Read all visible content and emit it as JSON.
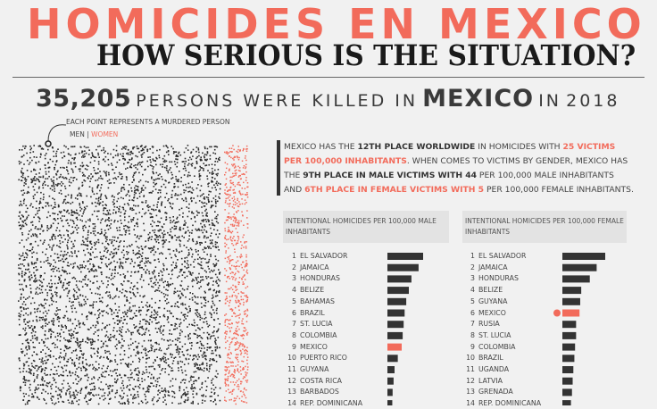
{
  "header": {
    "title": "HOMICIDES EN MEXICO",
    "subtitle": "HOW SERIOUS IS THE SITUATION?",
    "headline_number": "35,205",
    "headline_text1": "PERSONS WERE KILLED IN",
    "headline_country": "MEXICO",
    "headline_in": "IN",
    "headline_year": "2018"
  },
  "legend": {
    "note": "EACH POINT REPRESENTS A MURDERED PERSON",
    "men": "MEN",
    "sep": "|",
    "women": "WOMEN"
  },
  "description": {
    "p1": "MEXICO HAS THE ",
    "p2": "12TH PLACE WORLDWIDE",
    "p3": " IN HOMICIDES WITH ",
    "p4": "25 VICTIMS PER 100,000 INHABITANTS",
    "p5": ". WHEN COMES TO VICTIMS BY GENDER, MEXICO HAS THE ",
    "p6": "9TH PLACE IN MALE VICTIMS WITH 44",
    "p7": " PER 100,000 MALE INHABITANTS AND ",
    "p8": "6TH PLACE IN FEMALE VICTIMS WITH 5",
    "p9": " PER 100,000 FEMALE INHABITANTS."
  },
  "colors": {
    "accent": "#f26b5b",
    "bar": "#333333",
    "dot": "#2a2a2a"
  },
  "chart_data": [
    {
      "type": "bar",
      "title": "INTENTIONAL HOMICIDES PER 100,000 MALE INHABITANTS",
      "ranks": [
        "1",
        "2",
        "3",
        "4",
        "5",
        "6",
        "7",
        "8",
        "9",
        "10",
        "11",
        "12",
        "13",
        "14"
      ],
      "categories": [
        "EL SALVADOR",
        "JAMAICA",
        "HONDURAS",
        "BELIZE",
        "BAHAMAS",
        "BRAZIL",
        "ST. LUCIA",
        "COLOMBIA",
        "MEXICO",
        "PUERTO RICO",
        "GUYANA",
        "COSTA RICA",
        "BARBADOS",
        "REP. DOMINICANA"
      ],
      "values": [
        110,
        96,
        74,
        66,
        58,
        53,
        50,
        47,
        44,
        32,
        22,
        19,
        16,
        15
      ],
      "highlight": "MEXICO"
    },
    {
      "type": "bar",
      "title": "INTENTIONAL HOMICIDES PER 100,000 FEMALE INHABITANTS",
      "ranks": [
        "1",
        "2",
        "3",
        "4",
        "5",
        "6",
        "7",
        "8",
        "9",
        "10",
        "11",
        "12",
        "13",
        "14"
      ],
      "categories": [
        "EL SALVADOR",
        "JAMAICA",
        "HONDURAS",
        "BELIZE",
        "GUYANA",
        "MEXICO",
        "RUSIA",
        "ST. LUCIA",
        "COLOMBIA",
        "BRAZIL",
        "UGANDA",
        "LATVIA",
        "GRENADA",
        "REP. DOMINICANA"
      ],
      "values": [
        12.5,
        10,
        8,
        5.5,
        5.2,
        5,
        4,
        4,
        3.7,
        3.5,
        3.2,
        3,
        2.8,
        2.5
      ],
      "highlight": "MEXICO"
    }
  ]
}
